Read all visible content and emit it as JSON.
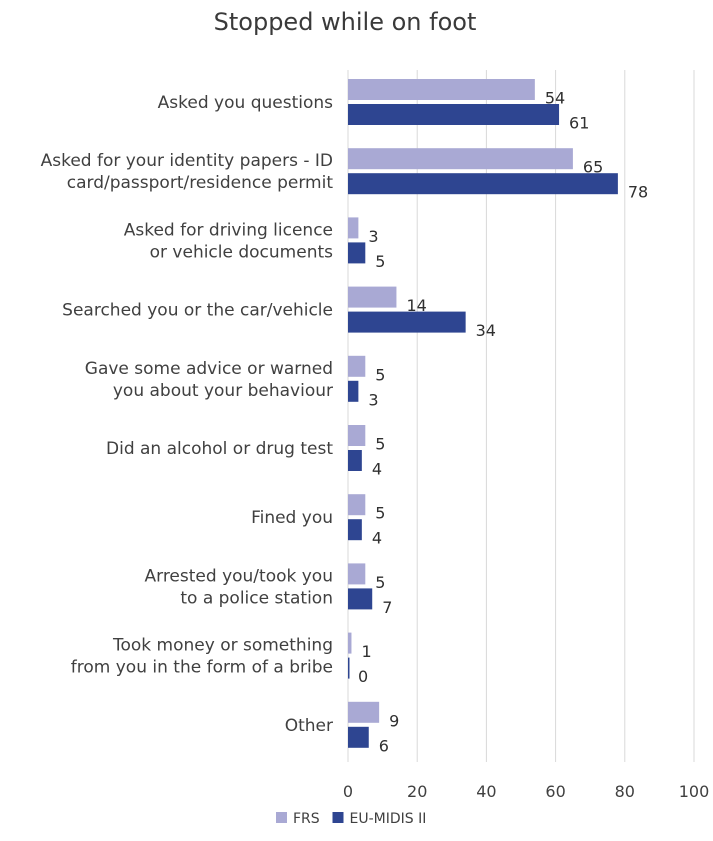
{
  "chart_data": {
    "type": "bar",
    "orientation": "horizontal",
    "title": "Stopped while on foot",
    "categories": [
      "Asked you questions",
      "Asked for your identity papers - ID card/passport/residence permit",
      "Asked for driving licence or vehicle documents",
      "Searched you or the car/vehicle",
      "Gave some advice or warned you about your behaviour",
      "Did an alcohol or drug test",
      "Fined you",
      "Arrested you/took you to a police station",
      "Took money or something from you in the form of a bribe",
      "Other"
    ],
    "category_lines": [
      [
        "Asked you questions"
      ],
      [
        "Asked for your identity papers - ID",
        "card/passport/residence permit"
      ],
      [
        "Asked for driving licence",
        "or vehicle documents"
      ],
      [
        "Searched you or the car/vehicle"
      ],
      [
        "Gave some advice or warned",
        "you about your behaviour"
      ],
      [
        "Did an alcohol or drug test"
      ],
      [
        "Fined you"
      ],
      [
        "Arrested you/took you",
        "to a police station"
      ],
      [
        "Took money or something",
        "from you in the form of a bribe"
      ],
      [
        "Other"
      ]
    ],
    "series": [
      {
        "name": "FRS",
        "color": "#a9a9d4",
        "values": [
          54,
          65,
          3,
          14,
          5,
          5,
          5,
          5,
          1,
          9
        ]
      },
      {
        "name": "EU-MIDIS II",
        "color": "#2e4591",
        "values": [
          61,
          78,
          5,
          34,
          3,
          4,
          4,
          7,
          0,
          6
        ]
      }
    ],
    "xlim": [
      0,
      100
    ],
    "xticks": [
      0,
      20,
      40,
      60,
      80,
      100
    ],
    "grid": true,
    "legend_position": "bottom"
  }
}
